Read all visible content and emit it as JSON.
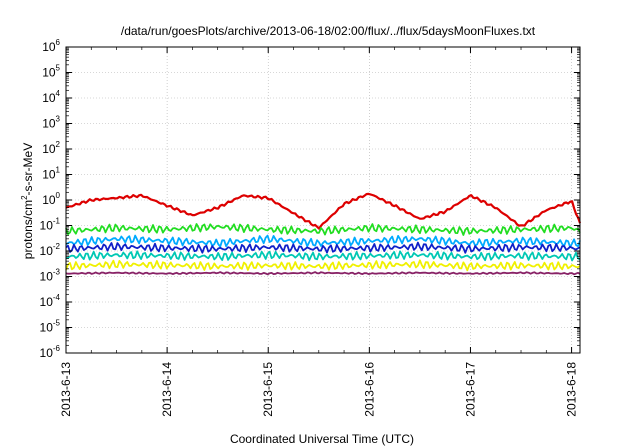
{
  "chart_data": {
    "type": "line",
    "title": "/data/run/goesPlots/archive/2013-06-18/02:00/flux/../flux/5daysMoonFluxes.txt",
    "xlabel": "Coordinated Universal Time (UTC)",
    "ylabel": {
      "base": "protons/cm",
      "sup": "2",
      "rest": "-s-sr-MeV"
    },
    "xscale": "time",
    "xlim": [
      "2013-06-13 00:00",
      "2013-06-18 02:00"
    ],
    "x_ticks": [
      "2013-6-13",
      "2013-6-14",
      "2013-6-15",
      "2013-6-16",
      "2013-6-17",
      "2013-6-18"
    ],
    "yscale": "log",
    "ylim": [
      1e-06,
      1000000.0
    ],
    "y_ticks": [
      {
        "base": "10",
        "exp": "-6"
      },
      {
        "base": "10",
        "exp": "-5"
      },
      {
        "base": "10",
        "exp": "-4"
      },
      {
        "base": "10",
        "exp": "-3"
      },
      {
        "base": "10",
        "exp": "-2"
      },
      {
        "base": "10",
        "exp": "-1"
      },
      {
        "base": "10",
        "exp": "0"
      },
      {
        "base": "10",
        "exp": "1"
      },
      {
        "base": "10",
        "exp": "2"
      },
      {
        "base": "10",
        "exp": "3"
      },
      {
        "base": "10",
        "exp": "4"
      },
      {
        "base": "10",
        "exp": "5"
      },
      {
        "base": "10",
        "exp": "6"
      }
    ],
    "grid": true,
    "series": [
      {
        "color": "#dd0000",
        "x": [
          "2013-06-13 00:00",
          "2013-06-13 06:00",
          "2013-06-13 12:00",
          "2013-06-13 18:00",
          "2013-06-14 00:00",
          "2013-06-14 06:00",
          "2013-06-14 12:00",
          "2013-06-14 18:00",
          "2013-06-15 00:00",
          "2013-06-15 06:00",
          "2013-06-15 12:00",
          "2013-06-15 18:00",
          "2013-06-16 00:00",
          "2013-06-16 06:00",
          "2013-06-16 12:00",
          "2013-06-16 18:00",
          "2013-06-17 00:00",
          "2013-06-17 06:00",
          "2013-06-17 12:00",
          "2013-06-17 18:00",
          "2013-06-18 00:00",
          "2013-06-18 02:00"
        ],
        "y": [
          0.5,
          1.0,
          1.2,
          1.5,
          0.6,
          0.25,
          0.5,
          1.5,
          1.2,
          0.3,
          0.08,
          0.7,
          1.8,
          0.6,
          0.18,
          0.35,
          1.5,
          0.5,
          0.09,
          0.4,
          0.9,
          0.12
        ]
      },
      {
        "color": "#22dd22",
        "x": [
          "2013-06-13 00:00",
          "2013-06-13 12:00",
          "2013-06-14 00:00",
          "2013-06-14 12:00",
          "2013-06-15 00:00",
          "2013-06-15 12:00",
          "2013-06-16 00:00",
          "2013-06-16 12:00",
          "2013-06-17 00:00",
          "2013-06-17 12:00",
          "2013-06-18 00:00",
          "2013-06-18 02:00"
        ],
        "y": [
          0.06,
          0.08,
          0.07,
          0.09,
          0.07,
          0.06,
          0.08,
          0.07,
          0.06,
          0.07,
          0.08,
          0.06
        ]
      },
      {
        "color": "#00aaff",
        "x": [
          "2013-06-13 00:00",
          "2013-06-13 12:00",
          "2013-06-14 00:00",
          "2013-06-14 12:00",
          "2013-06-15 00:00",
          "2013-06-15 12:00",
          "2013-06-16 00:00",
          "2013-06-16 12:00",
          "2013-06-17 00:00",
          "2013-06-17 12:00",
          "2013-06-18 00:00",
          "2013-06-18 02:00"
        ],
        "y": [
          0.02,
          0.03,
          0.025,
          0.02,
          0.03,
          0.02,
          0.025,
          0.03,
          0.02,
          0.025,
          0.02,
          0.02
        ]
      },
      {
        "color": "#1020c8",
        "x": [
          "2013-06-13 00:00",
          "2013-06-13 12:00",
          "2013-06-14 00:00",
          "2013-06-14 12:00",
          "2013-06-15 00:00",
          "2013-06-15 12:00",
          "2013-06-16 00:00",
          "2013-06-16 12:00",
          "2013-06-17 00:00",
          "2013-06-17 12:00",
          "2013-06-18 00:00",
          "2013-06-18 02:00"
        ],
        "y": [
          0.012,
          0.015,
          0.013,
          0.012,
          0.014,
          0.012,
          0.013,
          0.015,
          0.012,
          0.014,
          0.013,
          0.012
        ]
      },
      {
        "color": "#00c8b4",
        "x": [
          "2013-06-13 00:00",
          "2013-06-13 12:00",
          "2013-06-14 00:00",
          "2013-06-14 12:00",
          "2013-06-15 00:00",
          "2013-06-15 12:00",
          "2013-06-16 00:00",
          "2013-06-16 12:00",
          "2013-06-17 00:00",
          "2013-06-17 12:00",
          "2013-06-18 00:00",
          "2013-06-18 02:00"
        ],
        "y": [
          0.006,
          0.007,
          0.0065,
          0.006,
          0.007,
          0.006,
          0.0065,
          0.007,
          0.006,
          0.0065,
          0.006,
          0.006
        ]
      },
      {
        "color": "#f0f000",
        "x": [
          "2013-06-13 00:00",
          "2013-06-13 12:00",
          "2013-06-14 00:00",
          "2013-06-14 12:00",
          "2013-06-15 00:00",
          "2013-06-15 12:00",
          "2013-06-16 00:00",
          "2013-06-16 12:00",
          "2013-06-17 00:00",
          "2013-06-17 12:00",
          "2013-06-18 00:00",
          "2013-06-18 02:00"
        ],
        "y": [
          0.0025,
          0.003,
          0.0028,
          0.0025,
          0.0027,
          0.0025,
          0.0028,
          0.003,
          0.0025,
          0.0027,
          0.0025,
          0.0025
        ]
      },
      {
        "color": "#882266",
        "x": [
          "2013-06-13 00:00",
          "2013-06-13 12:00",
          "2013-06-14 00:00",
          "2013-06-14 12:00",
          "2013-06-15 00:00",
          "2013-06-15 12:00",
          "2013-06-16 00:00",
          "2013-06-16 12:00",
          "2013-06-17 00:00",
          "2013-06-17 12:00",
          "2013-06-18 00:00",
          "2013-06-18 02:00"
        ],
        "y": [
          0.0013,
          0.0014,
          0.0013,
          0.0014,
          0.0013,
          0.0014,
          0.0013,
          0.0014,
          0.0013,
          0.0014,
          0.0013,
          0.0013
        ]
      }
    ]
  }
}
